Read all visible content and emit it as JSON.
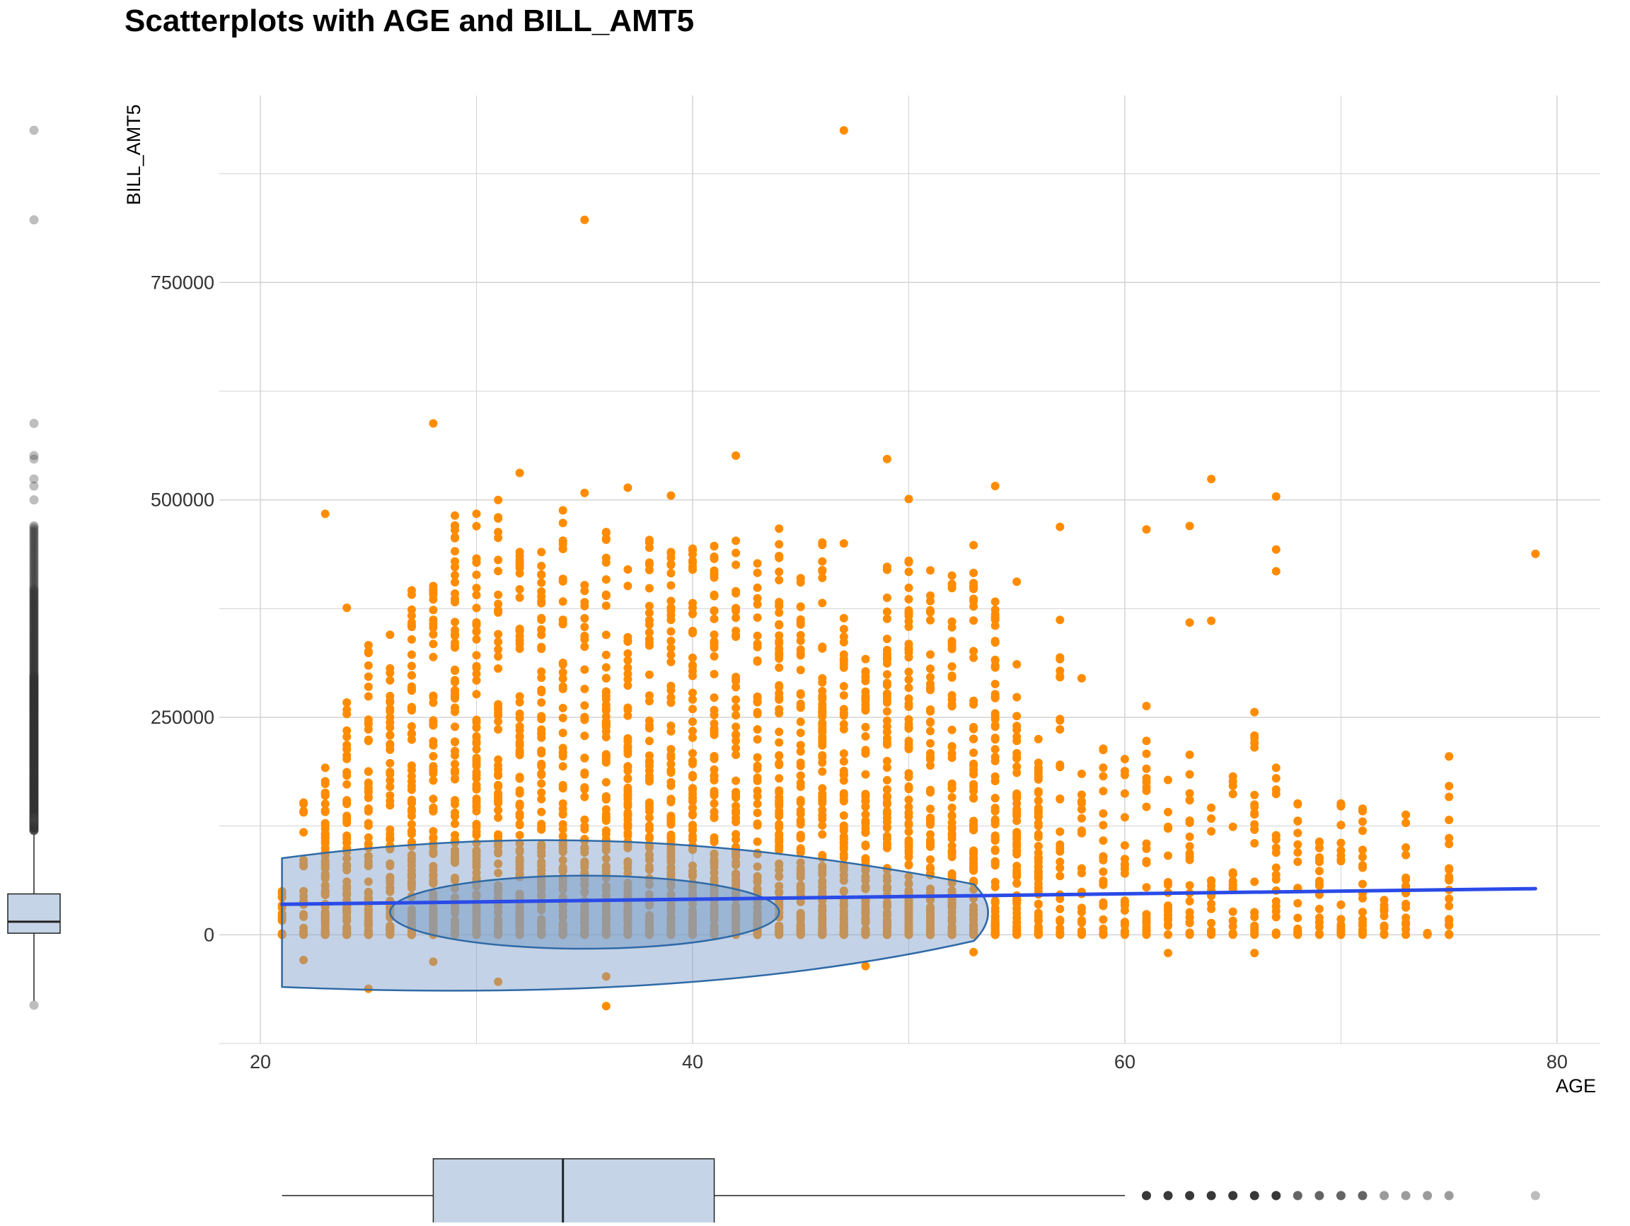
{
  "title": "Scatterplots with AGE and BILL_AMT5",
  "colors": {
    "points": "#ff8c00",
    "trend": "#2a4be8",
    "ellipse_fill": "#7a9cc7",
    "ellipse_stroke": "#2f6aa6",
    "box_fill": "#c5d4e6",
    "grid": "#d3d3d3",
    "box_stroke": "#222222"
  },
  "chart_data": {
    "type": "scatter",
    "title": "Scatterplots with AGE and BILL_AMT5",
    "xlabel": "AGE",
    "ylabel": "BILL_AMT5",
    "xlim": [
      18.1,
      82.0
    ],
    "ylim": [
      -125000,
      965000
    ],
    "x_ticks": [
      20,
      40,
      60,
      80
    ],
    "y_ticks": [
      0,
      250000,
      500000,
      750000
    ],
    "grid": true,
    "trend_line": {
      "start": [
        21,
        35000
      ],
      "end": [
        79,
        53000
      ]
    },
    "concentration_ellipses": [
      {
        "level": "outer",
        "age_range": [
          21,
          54
        ],
        "bill_range": [
          -62000,
          113000
        ]
      },
      {
        "level": "inner",
        "age_range": [
          26,
          44
        ],
        "bill_range": [
          -16000,
          68000
        ]
      }
    ],
    "outlier_points": [
      {
        "x": 47,
        "y": 925000
      },
      {
        "x": 35,
        "y": 822000
      },
      {
        "x": 28,
        "y": 588000
      },
      {
        "x": 42,
        "y": 551000
      },
      {
        "x": 49,
        "y": 547000
      },
      {
        "x": 32,
        "y": 531000
      },
      {
        "x": 64,
        "y": 524000
      },
      {
        "x": 54,
        "y": 516000
      },
      {
        "x": 37,
        "y": 514000
      },
      {
        "x": 35,
        "y": 508000
      },
      {
        "x": 67,
        "y": 504000
      },
      {
        "x": 39,
        "y": 505000
      },
      {
        "x": 50,
        "y": 501000
      },
      {
        "x": 31,
        "y": 500000
      },
      {
        "x": 23,
        "y": 484000
      },
      {
        "x": 63,
        "y": 470000
      },
      {
        "x": 57,
        "y": 469000
      },
      {
        "x": 61,
        "y": 466000
      },
      {
        "x": 79,
        "y": 438000
      },
      {
        "x": 67,
        "y": 443000
      },
      {
        "x": 67,
        "y": 418000
      },
      {
        "x": 55,
        "y": 406000
      },
      {
        "x": 64,
        "y": 361000
      },
      {
        "x": 63,
        "y": 359000
      },
      {
        "x": 58,
        "y": 295000
      },
      {
        "x": 61,
        "y": 263000
      },
      {
        "x": 66,
        "y": 256000
      },
      {
        "x": 75,
        "y": 205000
      },
      {
        "x": 47,
        "y": 450000
      },
      {
        "x": 24,
        "y": 376000
      },
      {
        "x": 25,
        "y": -62000
      },
      {
        "x": 36,
        "y": -82000
      },
      {
        "x": 48,
        "y": -36000
      },
      {
        "x": 31,
        "y": -54000
      },
      {
        "x": 36,
        "y": -48000
      },
      {
        "x": 22,
        "y": -29000
      },
      {
        "x": 28,
        "y": -31000
      },
      {
        "x": 53,
        "y": -20000
      },
      {
        "x": 62,
        "y": -21000
      },
      {
        "x": 66,
        "y": -21000
      },
      {
        "x": 73,
        "y": 138000
      },
      {
        "x": 70,
        "y": 151000
      },
      {
        "x": 71,
        "y": 145000
      },
      {
        "x": 69,
        "y": 107000
      },
      {
        "x": 68,
        "y": 151000
      }
    ],
    "column_upper_extent": [
      {
        "x": 21,
        "y": 50000
      },
      {
        "x": 22,
        "y": 152000
      },
      {
        "x": 23,
        "y": 192000
      },
      {
        "x": 24,
        "y": 267000
      },
      {
        "x": 25,
        "y": 333000
      },
      {
        "x": 26,
        "y": 345000
      },
      {
        "x": 27,
        "y": 396000
      },
      {
        "x": 28,
        "y": 401000
      },
      {
        "x": 29,
        "y": 482000
      },
      {
        "x": 30,
        "y": 484000
      },
      {
        "x": 31,
        "y": 480000
      },
      {
        "x": 32,
        "y": 440000
      },
      {
        "x": 33,
        "y": 440000
      },
      {
        "x": 34,
        "y": 488000
      },
      {
        "x": 35,
        "y": 402000
      },
      {
        "x": 36,
        "y": 463000
      },
      {
        "x": 37,
        "y": 420000
      },
      {
        "x": 38,
        "y": 454000
      },
      {
        "x": 39,
        "y": 440000
      },
      {
        "x": 40,
        "y": 444000
      },
      {
        "x": 41,
        "y": 447000
      },
      {
        "x": 42,
        "y": 453000
      },
      {
        "x": 43,
        "y": 427000
      },
      {
        "x": 44,
        "y": 467000
      },
      {
        "x": 45,
        "y": 410000
      },
      {
        "x": 46,
        "y": 451000
      },
      {
        "x": 47,
        "y": 364000
      },
      {
        "x": 48,
        "y": 317000
      },
      {
        "x": 49,
        "y": 423000
      },
      {
        "x": 50,
        "y": 430000
      },
      {
        "x": 51,
        "y": 419000
      },
      {
        "x": 52,
        "y": 413000
      },
      {
        "x": 53,
        "y": 448000
      },
      {
        "x": 54,
        "y": 383000
      },
      {
        "x": 55,
        "y": 311000
      },
      {
        "x": 56,
        "y": 225000
      },
      {
        "x": 57,
        "y": 362000
      },
      {
        "x": 58,
        "y": 185000
      },
      {
        "x": 59,
        "y": 214000
      },
      {
        "x": 60,
        "y": 202000
      },
      {
        "x": 61,
        "y": 223000
      },
      {
        "x": 62,
        "y": 178000
      },
      {
        "x": 63,
        "y": 207000
      },
      {
        "x": 64,
        "y": 146000
      },
      {
        "x": 65,
        "y": 182000
      },
      {
        "x": 66,
        "y": 229000
      },
      {
        "x": 67,
        "y": 192000
      },
      {
        "x": 68,
        "y": 150000
      },
      {
        "x": 69,
        "y": 106000
      },
      {
        "x": 70,
        "y": 150000
      },
      {
        "x": 71,
        "y": 144000
      },
      {
        "x": 72,
        "y": 40000
      },
      {
        "x": 73,
        "y": 138000
      },
      {
        "x": 74,
        "y": 2000
      },
      {
        "x": 75,
        "y": 205000
      }
    ],
    "age_boxplot": {
      "min": 21,
      "q1": 28,
      "median": 34,
      "q3": 41,
      "whisker_high": 60,
      "outliers": [
        61,
        62,
        63,
        64,
        65,
        66,
        67,
        68,
        69,
        70,
        71,
        72,
        73,
        74,
        75,
        79
      ]
    },
    "bill_amt5_boxplot": {
      "whisker_low": -81000,
      "q1": 1800,
      "median": 15000,
      "q3": 47000,
      "whisker_high": 115000,
      "outliers_from": 120000,
      "outliers_sparse": [
        129000,
        133000,
        135000,
        500000,
        516000,
        524000,
        547000,
        551000,
        588000,
        822000,
        925000
      ],
      "outlier_low": -81000
    }
  }
}
